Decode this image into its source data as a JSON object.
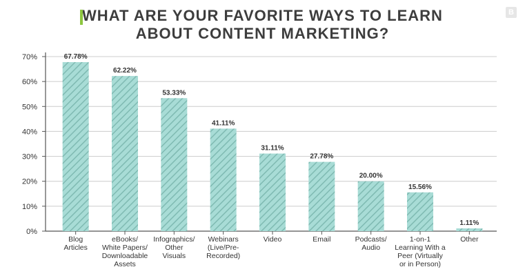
{
  "chart_data": {
    "type": "bar",
    "title_lines": [
      "WHAT ARE YOUR FAVORITE WAYS TO LEARN",
      "ABOUT CONTENT MARKETING?"
    ],
    "categories": [
      [
        "Blog",
        "Articles"
      ],
      [
        "eBooks/",
        "White Papers/",
        "Downloadable",
        "Assets"
      ],
      [
        "Infographics/",
        "Other",
        "Visuals"
      ],
      [
        "Webinars",
        "(Live/Pre-",
        "Recorded)"
      ],
      [
        "Video"
      ],
      [
        "Email"
      ],
      [
        "Podcasts/",
        "Audio"
      ],
      [
        "1-on-1",
        "Learning With a",
        "Peer (Virtually",
        "or in Person)"
      ],
      [
        "Other"
      ]
    ],
    "values": [
      67.78,
      62.22,
      53.33,
      41.11,
      31.11,
      27.78,
      20.0,
      15.56,
      1.11
    ],
    "value_labels": [
      "67.78%",
      "62.22%",
      "53.33%",
      "41.11%",
      "31.11%",
      "27.78%",
      "20.00%",
      "15.56%",
      "1.11%"
    ],
    "yticks": [
      "0%",
      "10%",
      "20%",
      "30%",
      "40%",
      "50%",
      "60%",
      "70%"
    ],
    "ylim": [
      0,
      70
    ],
    "grid": true,
    "bar_color": "#a8dcd6",
    "hatch_color": "#7fbab2",
    "grid_color": "#cccccc"
  },
  "brand": {
    "badge_letter": "B"
  }
}
